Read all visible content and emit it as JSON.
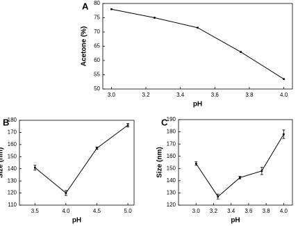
{
  "chart_data": [
    {
      "type": "line",
      "label": "A",
      "xlabel": "pH",
      "ylabel": "Acetone (%)",
      "color": "#000000",
      "x": [
        3.0,
        3.25,
        3.5,
        3.75,
        4.0
      ],
      "values": [
        78,
        75,
        71.5,
        63,
        53.5
      ],
      "xlim": [
        2.95,
        4.05
      ],
      "xticks": [
        {
          "value": 3,
          "label": "3.0"
        },
        3.2,
        3.4,
        3.6,
        3.8,
        {
          "value": 4,
          "label": "4.0"
        }
      ],
      "ylim": [
        50,
        80
      ],
      "yticks": [
        50,
        55,
        60,
        65,
        70,
        75,
        80
      ]
    },
    {
      "type": "line",
      "label": "B",
      "xlabel": "pH",
      "ylabel": "Size (nm)",
      "color": "#000000",
      "x": [
        3.5,
        4.0,
        4.5,
        5.0
      ],
      "values": [
        141,
        120,
        157,
        176
      ],
      "errors": [
        2,
        2,
        1,
        1.5
      ],
      "xlim": [
        3.25,
        5.1
      ],
      "xticks": [
        3.5,
        {
          "value": 4,
          "label": "4.0"
        },
        4.5,
        {
          "value": 5,
          "label": "5.0"
        }
      ],
      "ylim": [
        110,
        180
      ],
      "yticks": [
        110,
        120,
        130,
        140,
        150,
        160,
        170,
        180
      ]
    },
    {
      "type": "line",
      "label": "C",
      "xlabel": "pH",
      "ylabel": "Size (nm)",
      "color": "#000000",
      "x": [
        3.0,
        3.25,
        3.5,
        3.75,
        4.0
      ],
      "values": [
        154,
        127,
        142.5,
        148,
        178
      ],
      "errors": [
        1.5,
        2,
        1,
        3,
        3.5
      ],
      "xlim": [
        2.8,
        4.1
      ],
      "xticks": [
        {
          "value": 3,
          "label": "3.0"
        },
        3.2,
        3.4,
        3.6,
        3.8,
        {
          "value": 4,
          "label": "4.0"
        }
      ],
      "ylim": [
        120,
        190
      ],
      "yticks": [
        120,
        130,
        140,
        150,
        160,
        170,
        180,
        190
      ]
    }
  ]
}
